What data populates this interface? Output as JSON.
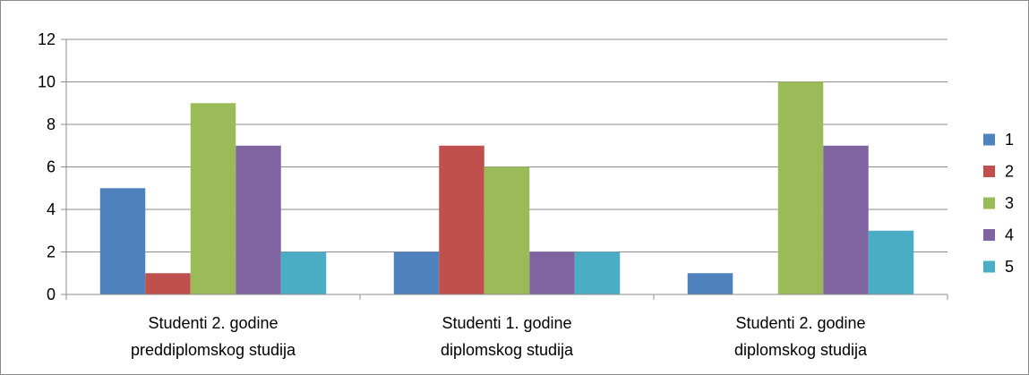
{
  "chart_data": {
    "type": "bar",
    "categories": [
      [
        "Studenti 2. godine",
        "preddiplomskog studija"
      ],
      [
        "Studenti 1. godine",
        "diplomskog studija"
      ],
      [
        "Studenti 2. godine",
        "diplomskog studija"
      ]
    ],
    "series": [
      {
        "name": "1",
        "color": "#4F81BD",
        "values": [
          5,
          2,
          1
        ]
      },
      {
        "name": "2",
        "color": "#C0504D",
        "values": [
          1,
          7,
          0
        ]
      },
      {
        "name": "3",
        "color": "#9BBB59",
        "values": [
          9,
          6,
          10
        ]
      },
      {
        "name": "4",
        "color": "#8064A2",
        "values": [
          7,
          2,
          7
        ]
      },
      {
        "name": "5",
        "color": "#4BACC6",
        "values": [
          2,
          2,
          3
        ]
      }
    ],
    "ylim": [
      0,
      12
    ],
    "yticks": [
      0,
      2,
      4,
      6,
      8,
      10,
      12
    ],
    "grid": true,
    "legend_position": "right",
    "title": "",
    "xlabel": "",
    "ylabel": ""
  }
}
